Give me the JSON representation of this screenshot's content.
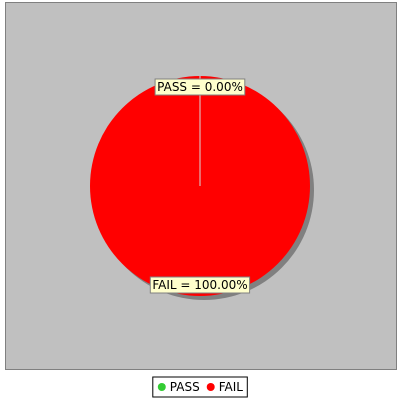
{
  "colors": {
    "plot_background": "#c0c0c0",
    "plot_border": "#808080",
    "shadow": "#808080",
    "label_background": "#ffffcc",
    "label_border": "#808080",
    "legend_border": "#000000"
  },
  "chart_data": {
    "type": "pie",
    "slices": [
      {
        "name": "PASS",
        "value": 0.0,
        "label": "PASS = 0.00%",
        "color": "#33cc33"
      },
      {
        "name": "FAIL",
        "value": 100.0,
        "label": "FAIL = 100.00%",
        "color": "#ff0000"
      }
    ],
    "legend": {
      "placement": "bottom",
      "items": [
        {
          "name": "PASS",
          "color": "#33cc33"
        },
        {
          "name": "FAIL",
          "color": "#ff0000"
        }
      ]
    }
  }
}
